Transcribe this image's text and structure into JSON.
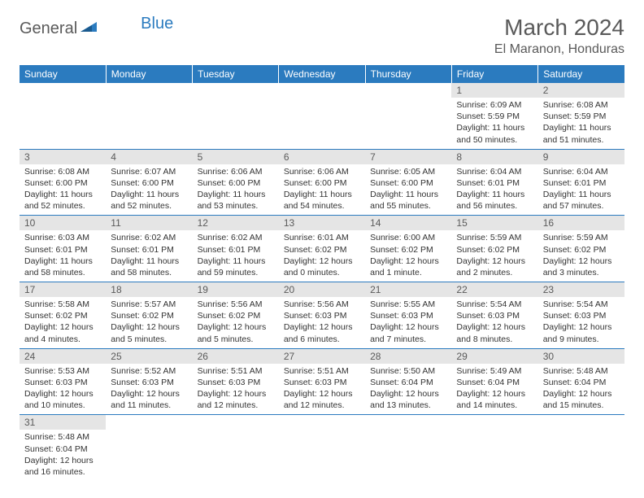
{
  "logo": {
    "part1": "General",
    "part2": "Blue"
  },
  "title": "March 2024",
  "location": "El Maranon, Honduras",
  "colors": {
    "header_bg": "#2b7bbf",
    "header_fg": "#ffffff",
    "daynum_bg": "#e5e5e5",
    "text": "#333333",
    "muted": "#5a5a5a",
    "rule": "#2b7bbf"
  },
  "weekdays": [
    "Sunday",
    "Monday",
    "Tuesday",
    "Wednesday",
    "Thursday",
    "Friday",
    "Saturday"
  ],
  "weeks": [
    [
      {
        "n": "",
        "sr": "",
        "ss": "",
        "dl": ""
      },
      {
        "n": "",
        "sr": "",
        "ss": "",
        "dl": ""
      },
      {
        "n": "",
        "sr": "",
        "ss": "",
        "dl": ""
      },
      {
        "n": "",
        "sr": "",
        "ss": "",
        "dl": ""
      },
      {
        "n": "",
        "sr": "",
        "ss": "",
        "dl": ""
      },
      {
        "n": "1",
        "sr": "Sunrise: 6:09 AM",
        "ss": "Sunset: 5:59 PM",
        "dl": "Daylight: 11 hours and 50 minutes."
      },
      {
        "n": "2",
        "sr": "Sunrise: 6:08 AM",
        "ss": "Sunset: 5:59 PM",
        "dl": "Daylight: 11 hours and 51 minutes."
      }
    ],
    [
      {
        "n": "3",
        "sr": "Sunrise: 6:08 AM",
        "ss": "Sunset: 6:00 PM",
        "dl": "Daylight: 11 hours and 52 minutes."
      },
      {
        "n": "4",
        "sr": "Sunrise: 6:07 AM",
        "ss": "Sunset: 6:00 PM",
        "dl": "Daylight: 11 hours and 52 minutes."
      },
      {
        "n": "5",
        "sr": "Sunrise: 6:06 AM",
        "ss": "Sunset: 6:00 PM",
        "dl": "Daylight: 11 hours and 53 minutes."
      },
      {
        "n": "6",
        "sr": "Sunrise: 6:06 AM",
        "ss": "Sunset: 6:00 PM",
        "dl": "Daylight: 11 hours and 54 minutes."
      },
      {
        "n": "7",
        "sr": "Sunrise: 6:05 AM",
        "ss": "Sunset: 6:00 PM",
        "dl": "Daylight: 11 hours and 55 minutes."
      },
      {
        "n": "8",
        "sr": "Sunrise: 6:04 AM",
        "ss": "Sunset: 6:01 PM",
        "dl": "Daylight: 11 hours and 56 minutes."
      },
      {
        "n": "9",
        "sr": "Sunrise: 6:04 AM",
        "ss": "Sunset: 6:01 PM",
        "dl": "Daylight: 11 hours and 57 minutes."
      }
    ],
    [
      {
        "n": "10",
        "sr": "Sunrise: 6:03 AM",
        "ss": "Sunset: 6:01 PM",
        "dl": "Daylight: 11 hours and 58 minutes."
      },
      {
        "n": "11",
        "sr": "Sunrise: 6:02 AM",
        "ss": "Sunset: 6:01 PM",
        "dl": "Daylight: 11 hours and 58 minutes."
      },
      {
        "n": "12",
        "sr": "Sunrise: 6:02 AM",
        "ss": "Sunset: 6:01 PM",
        "dl": "Daylight: 11 hours and 59 minutes."
      },
      {
        "n": "13",
        "sr": "Sunrise: 6:01 AM",
        "ss": "Sunset: 6:02 PM",
        "dl": "Daylight: 12 hours and 0 minutes."
      },
      {
        "n": "14",
        "sr": "Sunrise: 6:00 AM",
        "ss": "Sunset: 6:02 PM",
        "dl": "Daylight: 12 hours and 1 minute."
      },
      {
        "n": "15",
        "sr": "Sunrise: 5:59 AM",
        "ss": "Sunset: 6:02 PM",
        "dl": "Daylight: 12 hours and 2 minutes."
      },
      {
        "n": "16",
        "sr": "Sunrise: 5:59 AM",
        "ss": "Sunset: 6:02 PM",
        "dl": "Daylight: 12 hours and 3 minutes."
      }
    ],
    [
      {
        "n": "17",
        "sr": "Sunrise: 5:58 AM",
        "ss": "Sunset: 6:02 PM",
        "dl": "Daylight: 12 hours and 4 minutes."
      },
      {
        "n": "18",
        "sr": "Sunrise: 5:57 AM",
        "ss": "Sunset: 6:02 PM",
        "dl": "Daylight: 12 hours and 5 minutes."
      },
      {
        "n": "19",
        "sr": "Sunrise: 5:56 AM",
        "ss": "Sunset: 6:02 PM",
        "dl": "Daylight: 12 hours and 5 minutes."
      },
      {
        "n": "20",
        "sr": "Sunrise: 5:56 AM",
        "ss": "Sunset: 6:03 PM",
        "dl": "Daylight: 12 hours and 6 minutes."
      },
      {
        "n": "21",
        "sr": "Sunrise: 5:55 AM",
        "ss": "Sunset: 6:03 PM",
        "dl": "Daylight: 12 hours and 7 minutes."
      },
      {
        "n": "22",
        "sr": "Sunrise: 5:54 AM",
        "ss": "Sunset: 6:03 PM",
        "dl": "Daylight: 12 hours and 8 minutes."
      },
      {
        "n": "23",
        "sr": "Sunrise: 5:54 AM",
        "ss": "Sunset: 6:03 PM",
        "dl": "Daylight: 12 hours and 9 minutes."
      }
    ],
    [
      {
        "n": "24",
        "sr": "Sunrise: 5:53 AM",
        "ss": "Sunset: 6:03 PM",
        "dl": "Daylight: 12 hours and 10 minutes."
      },
      {
        "n": "25",
        "sr": "Sunrise: 5:52 AM",
        "ss": "Sunset: 6:03 PM",
        "dl": "Daylight: 12 hours and 11 minutes."
      },
      {
        "n": "26",
        "sr": "Sunrise: 5:51 AM",
        "ss": "Sunset: 6:03 PM",
        "dl": "Daylight: 12 hours and 12 minutes."
      },
      {
        "n": "27",
        "sr": "Sunrise: 5:51 AM",
        "ss": "Sunset: 6:03 PM",
        "dl": "Daylight: 12 hours and 12 minutes."
      },
      {
        "n": "28",
        "sr": "Sunrise: 5:50 AM",
        "ss": "Sunset: 6:04 PM",
        "dl": "Daylight: 12 hours and 13 minutes."
      },
      {
        "n": "29",
        "sr": "Sunrise: 5:49 AM",
        "ss": "Sunset: 6:04 PM",
        "dl": "Daylight: 12 hours and 14 minutes."
      },
      {
        "n": "30",
        "sr": "Sunrise: 5:48 AM",
        "ss": "Sunset: 6:04 PM",
        "dl": "Daylight: 12 hours and 15 minutes."
      }
    ],
    [
      {
        "n": "31",
        "sr": "Sunrise: 5:48 AM",
        "ss": "Sunset: 6:04 PM",
        "dl": "Daylight: 12 hours and 16 minutes."
      },
      {
        "n": "",
        "sr": "",
        "ss": "",
        "dl": ""
      },
      {
        "n": "",
        "sr": "",
        "ss": "",
        "dl": ""
      },
      {
        "n": "",
        "sr": "",
        "ss": "",
        "dl": ""
      },
      {
        "n": "",
        "sr": "",
        "ss": "",
        "dl": ""
      },
      {
        "n": "",
        "sr": "",
        "ss": "",
        "dl": ""
      },
      {
        "n": "",
        "sr": "",
        "ss": "",
        "dl": ""
      }
    ]
  ]
}
